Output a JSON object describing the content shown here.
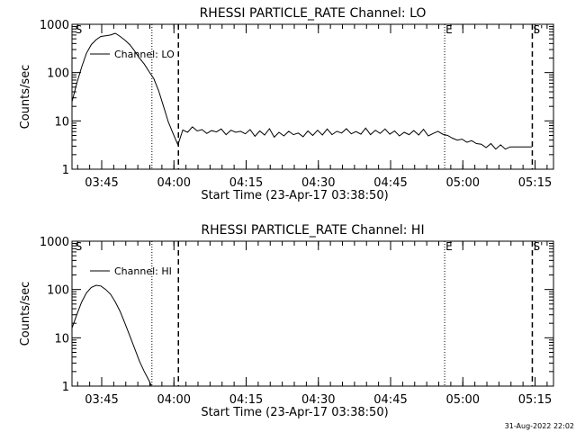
{
  "footer_timestamp": "31-Aug-2022 22:02",
  "chart_data": [
    {
      "type": "line",
      "title": "RHESSI PARTICLE_RATE Channel: LO",
      "xlabel": "Start Time (23-Apr-17 03:38:50)",
      "ylabel": "Counts/sec",
      "yscale": "log",
      "ylim": [
        1,
        1000
      ],
      "xlim_minutes": [
        0,
        100
      ],
      "x_ticks": [
        {
          "t": 6.17,
          "label": "03:45"
        },
        {
          "t": 21.17,
          "label": "04:00"
        },
        {
          "t": 36.17,
          "label": "04:15"
        },
        {
          "t": 51.17,
          "label": "04:30"
        },
        {
          "t": 66.17,
          "label": "04:45"
        },
        {
          "t": 81.17,
          "label": "05:00"
        },
        {
          "t": 96.17,
          "label": "05:15"
        }
      ],
      "y_ticks": [
        {
          "v": 1,
          "label": "1"
        },
        {
          "v": 10,
          "label": "10"
        },
        {
          "v": 100,
          "label": "100"
        },
        {
          "v": 1000,
          "label": "1000"
        }
      ],
      "legend": "Channel: LO",
      "markers": [
        {
          "t": 0.5,
          "label": "S",
          "style": "none"
        },
        {
          "t": 16.6,
          "label": "",
          "style": "dotted"
        },
        {
          "t": 22.1,
          "label": "",
          "style": "dashed"
        },
        {
          "t": 77.4,
          "label": "E",
          "style": "dotted"
        },
        {
          "t": 95.6,
          "label": "S'",
          "style": "dashed"
        }
      ],
      "series": [
        {
          "name": "Channel: LO",
          "x": [
            0,
            1,
            2,
            3,
            4,
            5,
            6,
            7,
            8,
            9,
            10,
            11,
            12,
            13,
            14,
            15,
            16,
            17,
            18,
            19,
            20,
            21,
            22,
            23,
            24,
            25,
            26,
            27,
            28,
            29,
            30,
            31,
            32,
            33,
            34,
            35,
            36,
            37,
            38,
            39,
            40,
            41,
            42,
            43,
            44,
            45,
            46,
            47,
            48,
            49,
            50,
            51,
            52,
            53,
            54,
            55,
            56,
            57,
            58,
            59,
            60,
            61,
            62,
            63,
            64,
            65,
            66,
            67,
            68,
            69,
            70,
            71,
            72,
            73,
            74,
            75,
            76,
            77,
            78,
            79,
            80,
            81,
            82,
            83,
            84,
            85,
            86,
            87,
            88,
            89,
            90,
            91,
            92,
            93,
            94,
            95.5
          ],
          "values": [
            25,
            60,
            130,
            250,
            380,
            480,
            560,
            580,
            600,
            650,
            560,
            470,
            380,
            280,
            200,
            150,
            105,
            75,
            42,
            20,
            9.5,
            5.5,
            3.2,
            6.5,
            5.8,
            7.5,
            6.2,
            6.6,
            5.5,
            6.3,
            5.9,
            6.8,
            5.2,
            6.4,
            5.8,
            6.1,
            5.4,
            6.6,
            4.8,
            6.2,
            5.1,
            6.9,
            4.6,
            5.8,
            4.9,
            6.1,
            5.2,
            5.6,
            4.7,
            6.2,
            5.0,
            6.4,
            5.1,
            6.8,
            5.2,
            6.1,
            5.6,
            6.9,
            5.4,
            6.0,
            5.3,
            7.1,
            5.2,
            6.4,
            5.5,
            6.8,
            5.3,
            6.2,
            4.9,
            5.8,
            5.2,
            6.3,
            5.1,
            6.7,
            4.9,
            5.5,
            6.1,
            5.3,
            5.0,
            4.4,
            4.0,
            4.2,
            3.6,
            3.9,
            3.4,
            3.3,
            2.8,
            3.4,
            2.6,
            3.2,
            2.6,
            2.9,
            2.9,
            2.9,
            2.9,
            2.9
          ]
        }
      ]
    },
    {
      "type": "line",
      "title": "RHESSI PARTICLE_RATE Channel: HI",
      "xlabel": "Start Time (23-Apr-17 03:38:50)",
      "ylabel": "Counts/sec",
      "yscale": "log",
      "ylim": [
        1,
        1000
      ],
      "xlim_minutes": [
        0,
        100
      ],
      "x_ticks": [
        {
          "t": 6.17,
          "label": "03:45"
        },
        {
          "t": 21.17,
          "label": "04:00"
        },
        {
          "t": 36.17,
          "label": "04:15"
        },
        {
          "t": 51.17,
          "label": "04:30"
        },
        {
          "t": 66.17,
          "label": "04:45"
        },
        {
          "t": 81.17,
          "label": "05:00"
        },
        {
          "t": 96.17,
          "label": "05:15"
        }
      ],
      "y_ticks": [
        {
          "v": 1,
          "label": "1"
        },
        {
          "v": 10,
          "label": "10"
        },
        {
          "v": 100,
          "label": "100"
        },
        {
          "v": 1000,
          "label": "1000"
        }
      ],
      "legend": "Channel: HI",
      "markers": [
        {
          "t": 0.5,
          "label": "S",
          "style": "none"
        },
        {
          "t": 16.6,
          "label": "",
          "style": "dotted"
        },
        {
          "t": 22.1,
          "label": "",
          "style": "dashed"
        },
        {
          "t": 77.4,
          "label": "E",
          "style": "dotted"
        },
        {
          "t": 95.6,
          "label": "S'",
          "style": "dashed"
        }
      ],
      "series": [
        {
          "name": "Channel: HI",
          "x": [
            0,
            1,
            2,
            3,
            4,
            5,
            6,
            7,
            8,
            9,
            10,
            11,
            12,
            13,
            14,
            15,
            16,
            16.5
          ],
          "values": [
            16,
            30,
            55,
            85,
            110,
            122,
            118,
            100,
            80,
            55,
            35,
            20,
            11,
            6,
            3.3,
            2,
            1.3,
            1
          ]
        }
      ]
    }
  ]
}
